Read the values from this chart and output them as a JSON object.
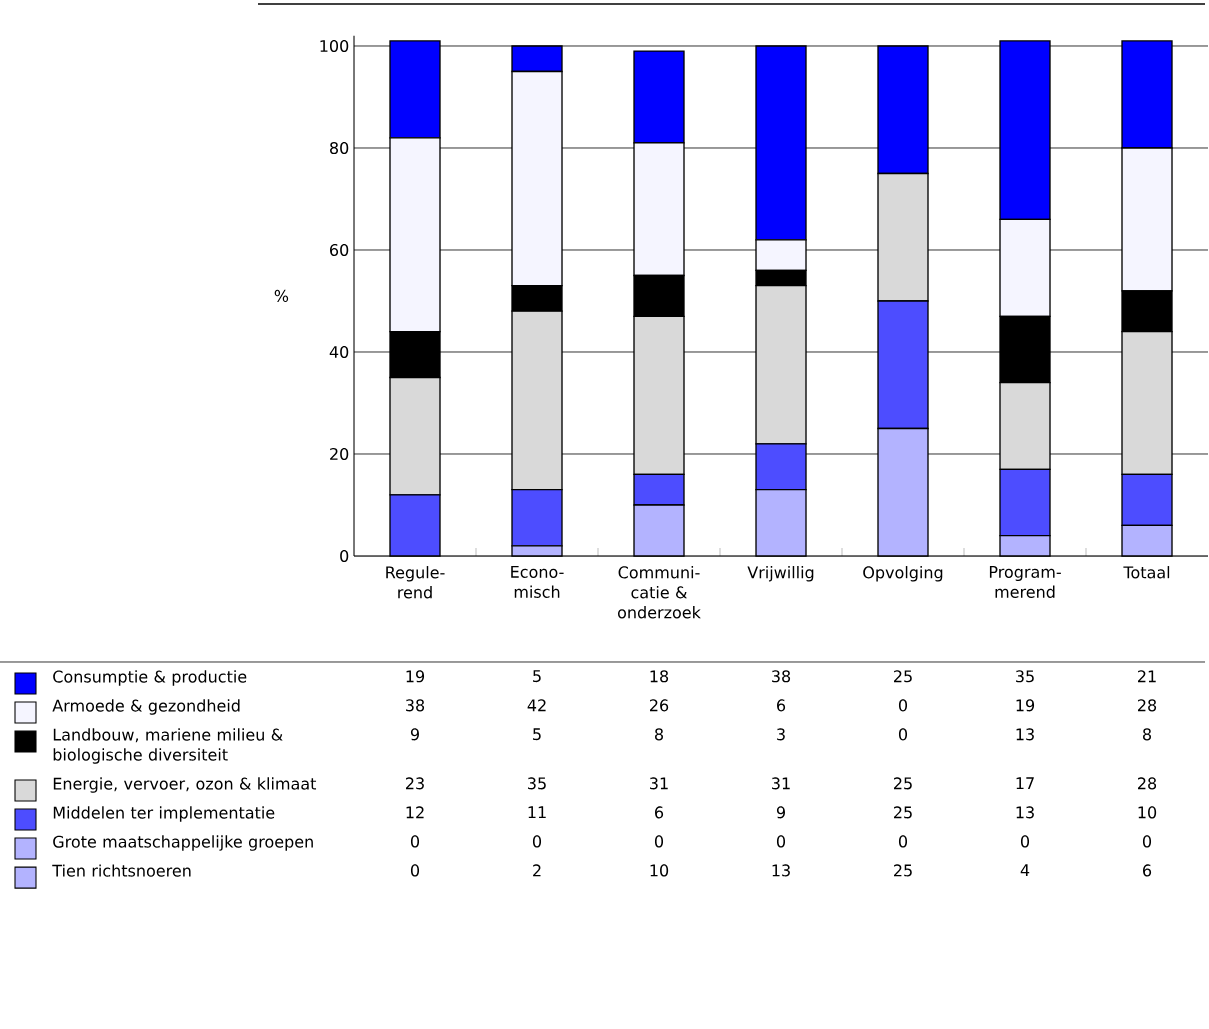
{
  "chart_data": {
    "type": "bar",
    "stacked": true,
    "ylabel": "%",
    "categories": [
      "Regule- rend",
      "Econo- misch",
      "Communi- catie & onderzoek",
      "Vrijwillig",
      "Opvolging",
      "Program- merend",
      "Totaal"
    ],
    "series": [
      {
        "name": "Tien richtsnoeren",
        "color": "#b3b3ff",
        "values": [
          0,
          2,
          10,
          13,
          25,
          4,
          6
        ]
      },
      {
        "name": "Grote maatschappelijke groepen",
        "color": "#b3b3ff",
        "values": [
          0,
          0,
          0,
          0,
          0,
          0,
          0
        ]
      },
      {
        "name": "Middelen ter implementatie",
        "color": "#4d4dff",
        "values": [
          12,
          11,
          6,
          9,
          25,
          13,
          10
        ]
      },
      {
        "name": "Energie, vervoer, ozon & klimaat",
        "color": "#d9d9d9",
        "values": [
          23,
          35,
          31,
          31,
          25,
          17,
          28
        ]
      },
      {
        "name": "Landbouw, mariene milieu & biologische diversiteit",
        "color": "#000000",
        "values": [
          9,
          5,
          8,
          3,
          0,
          13,
          8
        ]
      },
      {
        "name": "Armoede & gezondheid",
        "color": "#f5f5ff",
        "values": [
          38,
          42,
          26,
          6,
          0,
          19,
          28
        ]
      },
      {
        "name": "Consumptie & productie",
        "color": "#0000ff",
        "values": [
          19,
          5,
          18,
          38,
          25,
          35,
          21
        ]
      }
    ],
    "ylim": [
      0,
      102
    ],
    "yticks": [
      0,
      20,
      40,
      60,
      80,
      100
    ],
    "grid": "y",
    "legend": "bottom",
    "data_labels": true
  }
}
